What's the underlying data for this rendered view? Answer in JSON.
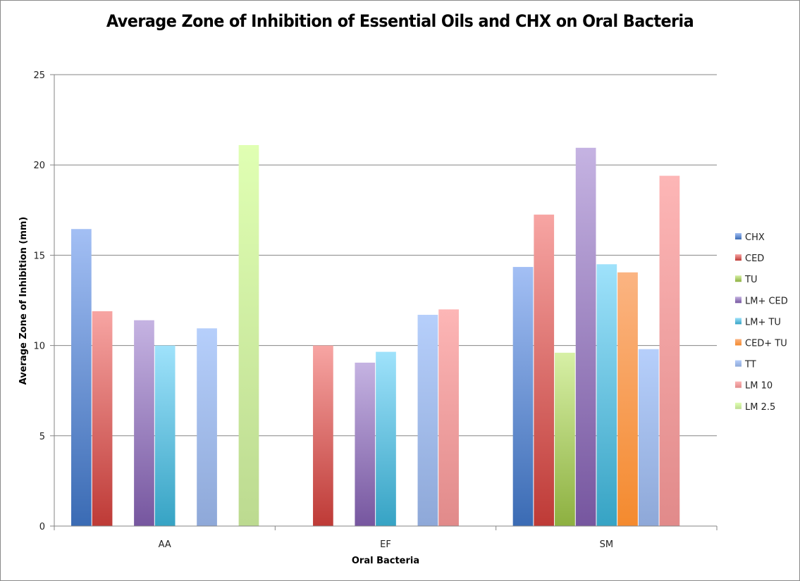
{
  "chart_data": {
    "type": "bar",
    "title": "Average Zone of Inhibition of Essential Oils and CHX on Oral Bacteria",
    "xlabel": "Oral Bacteria",
    "ylabel": "Average Zone of Inhibition (mm)",
    "ylim": [
      0,
      25
    ],
    "yticks": [
      0,
      5,
      10,
      15,
      20,
      25
    ],
    "grid": true,
    "legend_position": "right",
    "categories": [
      "AA",
      "EF",
      "SM"
    ],
    "series": [
      {
        "name": "CHX",
        "color": "#4a7ebb",
        "light": "#a3bff4",
        "dark": "#3a6bb4",
        "values": [
          16.45,
          null,
          14.35
        ]
      },
      {
        "name": "CED",
        "color": "#c0504d",
        "light": "#f7a5a3",
        "dark": "#be3a36",
        "values": [
          11.9,
          10.0,
          17.25
        ]
      },
      {
        "name": "TU",
        "color": "#9bbb59",
        "light": "#d7f0a6",
        "dark": "#8db040",
        "values": [
          null,
          null,
          9.6
        ]
      },
      {
        "name": "LM+ CED",
        "color": "#8064a2",
        "light": "#c5b3e2",
        "dark": "#76569f",
        "values": [
          11.4,
          9.05,
          20.95
        ]
      },
      {
        "name": "LM+ TU",
        "color": "#4bacc6",
        "light": "#9fe2fb",
        "dark": "#36a3c4",
        "values": [
          10.0,
          9.65,
          14.5
        ]
      },
      {
        "name": "CED+ TU",
        "color": "#f79646",
        "light": "#fbb482",
        "dark": "#f48a2e",
        "values": [
          null,
          null,
          14.05
        ]
      },
      {
        "name": "TT",
        "color": "#95b3d7",
        "light": "#b6cffb",
        "dark": "#8ea8d8",
        "values": [
          10.95,
          11.7,
          9.8
        ]
      },
      {
        "name": "LM 10",
        "color": "#f2a1a1",
        "light": "#fdb6b6",
        "dark": "#e18a8a",
        "values": [
          null,
          12.0,
          19.4
        ]
      },
      {
        "name": "LM 2.5",
        "color": "#c6eba0",
        "light": "#e0ffb3",
        "dark": "#bcda90",
        "values": [
          21.1,
          null,
          null
        ]
      }
    ]
  }
}
